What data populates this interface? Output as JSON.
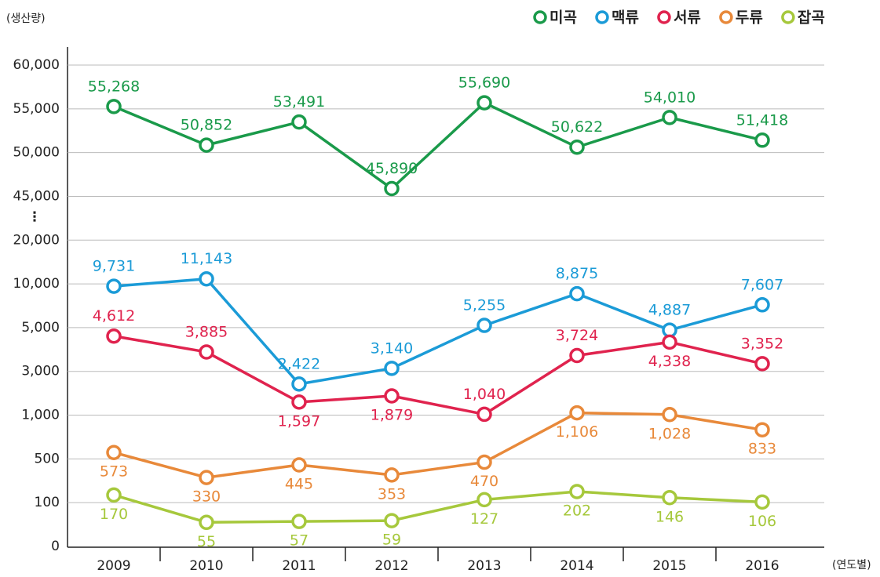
{
  "chart_data": {
    "type": "line",
    "y_unit_label": "(생산량)",
    "x_unit_label": "(연도별)",
    "axis_break": "⋮",
    "yscale": "piecewise-linear",
    "categories": [
      "2009",
      "2010",
      "2011",
      "2012",
      "2013",
      "2014",
      "2015",
      "2016"
    ],
    "ylim": [
      0,
      60000
    ],
    "yticks": [
      0,
      100,
      500,
      {
        "value": 1000,
        "label": "1,000"
      },
      {
        "value": 3000,
        "label": "3,000"
      },
      {
        "value": 5000,
        "label": "5,000"
      },
      {
        "value": 10000,
        "label": "10,000"
      },
      {
        "value": 20000,
        "label": "20,000"
      },
      {
        "value": 45000,
        "label": "45,000"
      },
      {
        "value": 50000,
        "label": "50,000"
      },
      {
        "value": 55000,
        "label": "55,000"
      },
      {
        "value": 60000,
        "label": "60,000"
      }
    ],
    "grid": true,
    "legend": "top-right",
    "series": [
      {
        "name": "미곡",
        "color": "#1a9a4a",
        "values": [
          55268,
          50852,
          53491,
          45890,
          55690,
          50622,
          54010,
          51418
        ],
        "value_labels": [
          "55,268",
          "50,852",
          "53,491",
          "45,890",
          "55,690",
          "50,622",
          "54,010",
          "51,418"
        ]
      },
      {
        "name": "맥류",
        "color": "#1b9bd7",
        "values": [
          9731,
          11143,
          2422,
          3140,
          5255,
          8875,
          4887,
          7607
        ],
        "value_labels": [
          "9,731",
          "11,143",
          "2,422",
          "3,140",
          "5,255",
          "8,875",
          "4,887",
          "7,607"
        ]
      },
      {
        "name": "서류",
        "color": "#e0234e",
        "values": [
          4612,
          3885,
          1597,
          1879,
          1040,
          3724,
          4338,
          3352
        ],
        "value_labels": [
          "4,612",
          "3,885",
          "1,597",
          "1,879",
          "1,040",
          "3,724",
          "4,338",
          "3,352"
        ]
      },
      {
        "name": "두류",
        "color": "#e8893a",
        "values": [
          573,
          330,
          445,
          353,
          470,
          1106,
          1028,
          833
        ],
        "value_labels": [
          "573",
          "330",
          "445",
          "353",
          "470",
          "1,106",
          "1,028",
          "833"
        ]
      },
      {
        "name": "잡곡",
        "color": "#a6c83c",
        "values": [
          170,
          55,
          57,
          59,
          127,
          202,
          146,
          106
        ]
      }
    ]
  }
}
